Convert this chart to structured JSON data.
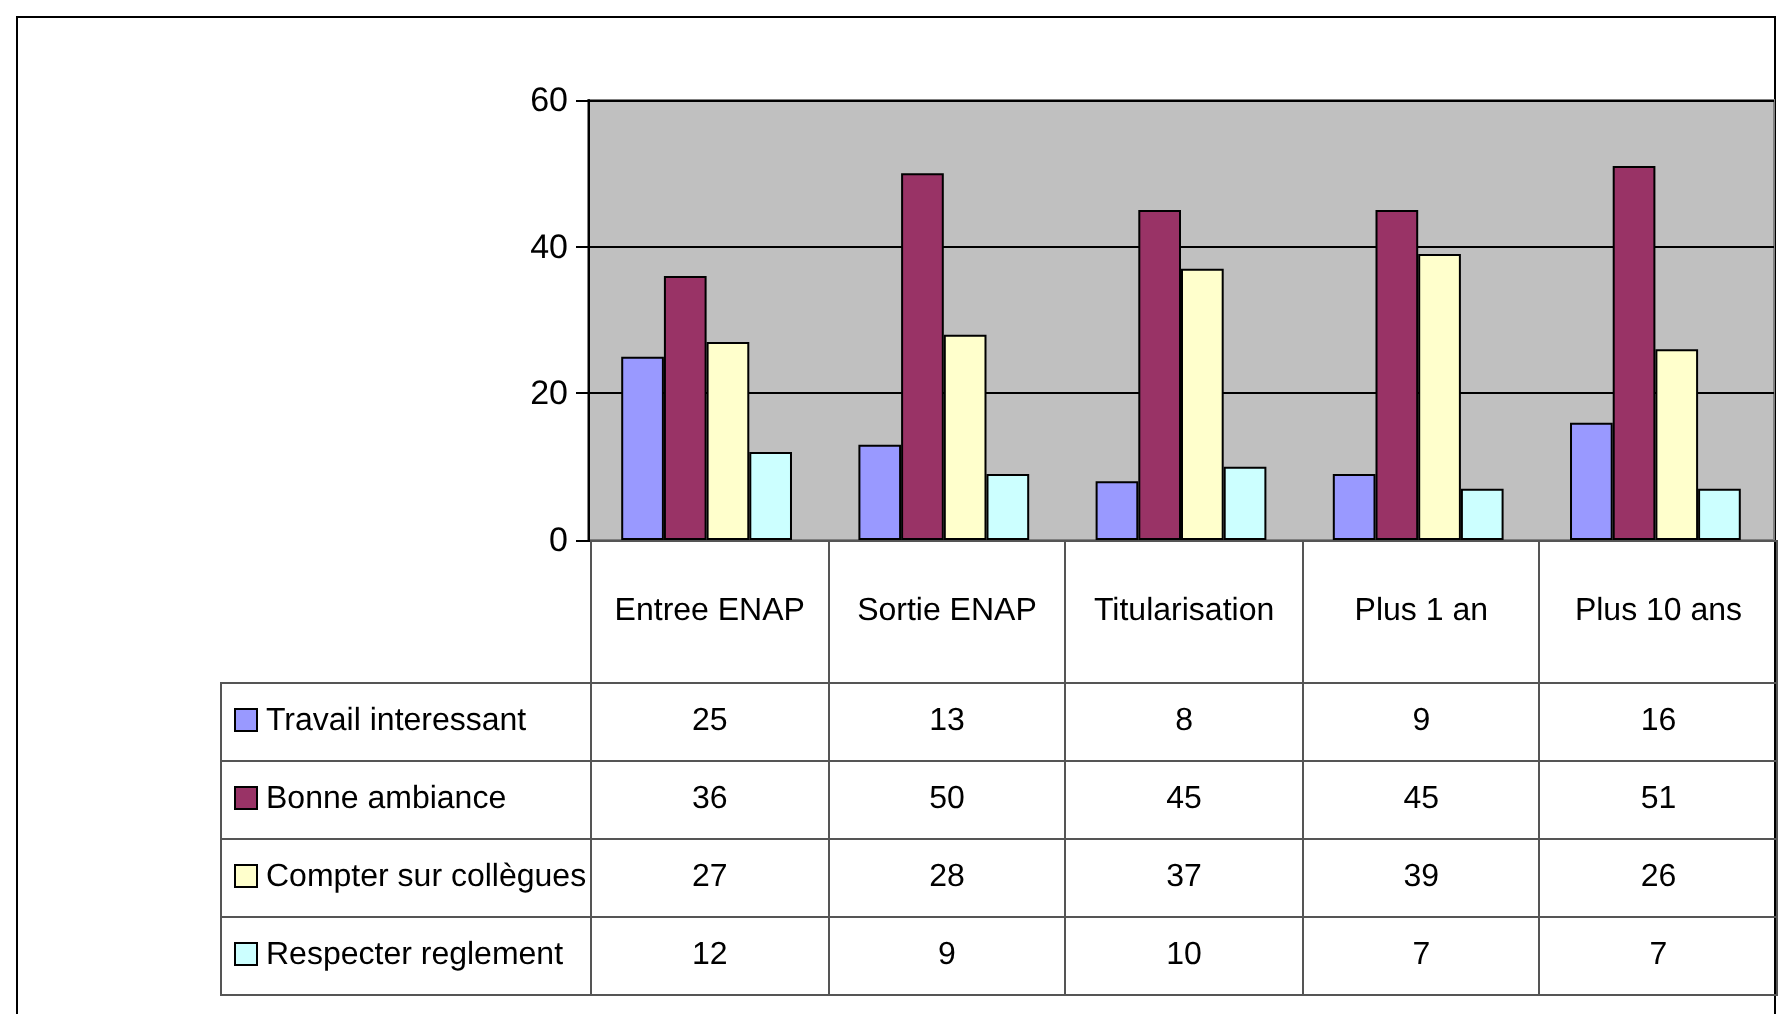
{
  "chart_data": {
    "type": "bar",
    "categories": [
      "Entree ENAP",
      "Sortie ENAP",
      "Titularisation",
      "Plus 1 an",
      "Plus 10 ans"
    ],
    "series": [
      {
        "name": "Travail interessant",
        "color": "#9999ff",
        "values": [
          25,
          13,
          8,
          9,
          16
        ]
      },
      {
        "name": "Bonne ambiance",
        "color": "#993366",
        "values": [
          36,
          50,
          45,
          45,
          51
        ]
      },
      {
        "name": "Compter sur collègues",
        "color": "#ffffcc",
        "values": [
          27,
          28,
          37,
          39,
          26
        ]
      },
      {
        "name": "Respecter reglement",
        "color": "#ccffff",
        "values": [
          12,
          9,
          10,
          7,
          7
        ]
      }
    ],
    "ylim": [
      0,
      60
    ],
    "yticks": [
      0,
      20,
      40,
      60
    ],
    "grid": "y",
    "legend": "bottom left",
    "data_labels": true
  }
}
